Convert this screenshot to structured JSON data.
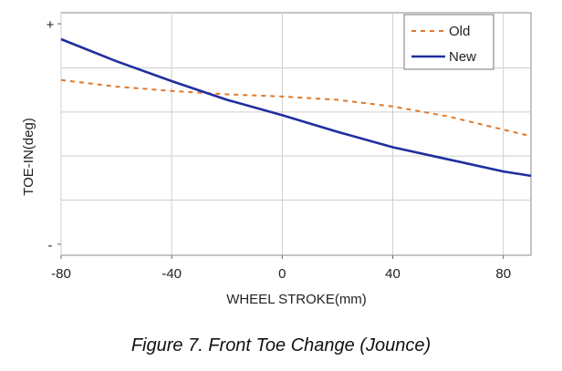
{
  "caption": "Figure 7. Front Toe Change (Jounce)",
  "chart_data": {
    "type": "line",
    "xlabel": "WHEEL STROKE(mm)",
    "ylabel": "TOE-IN(deg)",
    "xlim": [
      -80,
      90
    ],
    "x_ticks": [
      -80,
      -40,
      0,
      40,
      80
    ],
    "x_tick_labels": [
      "-80",
      "-40",
      "0",
      "40",
      "80"
    ],
    "ylim": [
      -1.1,
      1.1
    ],
    "y_ticks": [
      1,
      -1
    ],
    "y_tick_labels": [
      "+",
      "-"
    ],
    "grid": true,
    "legend_position": "top-right",
    "series": [
      {
        "name": "Old",
        "style": "dashed",
        "color": "#e0782a",
        "x": [
          -80,
          -60,
          -40,
          -20,
          0,
          20,
          40,
          60,
          80,
          90
        ],
        "y": [
          0.49,
          0.43,
          0.39,
          0.36,
          0.34,
          0.31,
          0.25,
          0.16,
          0.04,
          -0.02
        ]
      },
      {
        "name": "New",
        "style": "solid",
        "color": "#1f2e9e",
        "x": [
          -80,
          -60,
          -40,
          -20,
          0,
          20,
          40,
          60,
          80,
          90
        ],
        "y": [
          0.86,
          0.66,
          0.48,
          0.31,
          0.17,
          0.02,
          -0.12,
          -0.23,
          -0.34,
          -0.38
        ]
      }
    ]
  }
}
